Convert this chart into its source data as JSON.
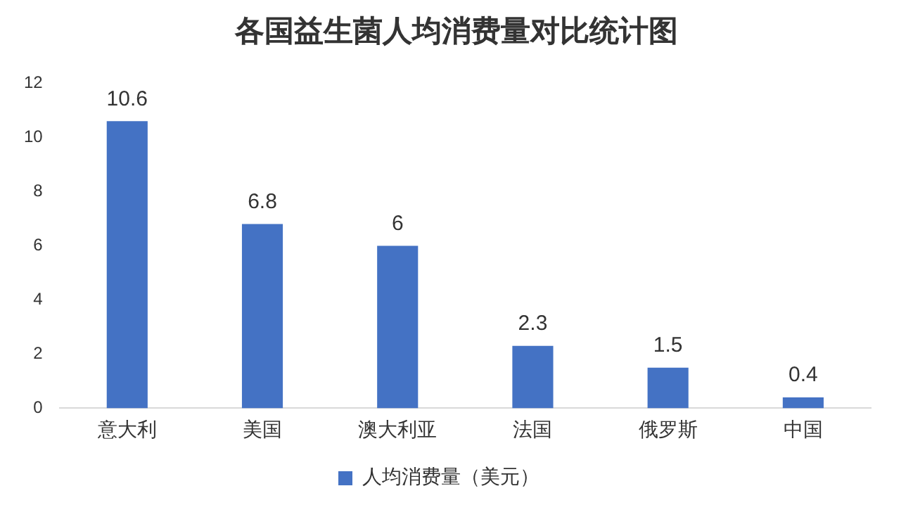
{
  "chart_data": {
    "type": "bar",
    "title": "各国益生菌人均消费量对比统计图",
    "categories": [
      "意大利",
      "美国",
      "澳大利亚",
      "法国",
      "俄罗斯",
      "中国"
    ],
    "series": [
      {
        "name": "人均消费量（美元）",
        "color": "#4472c4",
        "values": [
          10.6,
          6.8,
          6,
          2.3,
          1.5,
          0.4
        ]
      }
    ],
    "ylim": [
      0,
      12
    ],
    "yticks": [
      0,
      2,
      4,
      6,
      8,
      10,
      12
    ],
    "grid": false,
    "legend": "bottom",
    "data_labels": true
  }
}
